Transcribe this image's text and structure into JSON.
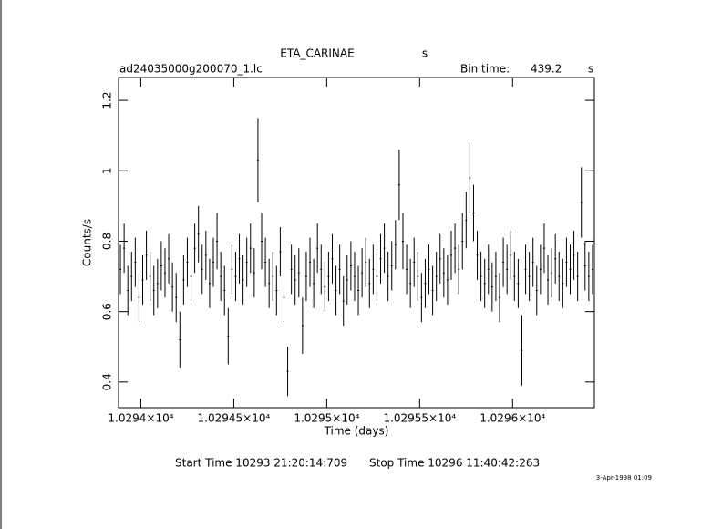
{
  "chart_data": {
    "type": "errorbar",
    "title": "ETA_CARINAE",
    "title_unit": "s",
    "file": "ad24035000g200070_1.lc",
    "bin_label": "Bin time:",
    "bin_time": "439.2",
    "bin_unit": "s",
    "xlabel": "Time (days)",
    "ylabel": "Counts/s",
    "start": "Start Time 10293 21:20:14:709",
    "stop": "Stop Time 10296 11:40:42:263",
    "date": "3-Apr-1998 01:09",
    "color": "#000000",
    "xlim": [
      10293.88,
      10296.44
    ],
    "ylim": [
      0.327,
      1.265
    ],
    "xticks": [
      {
        "value": 10294,
        "label": "1.0294×10⁴"
      },
      {
        "value": 10294.5,
        "label": "1.02945×10⁴"
      },
      {
        "value": 10295,
        "label": "1.0295×10⁴"
      },
      {
        "value": 10295.5,
        "label": "1.02955×10⁴"
      },
      {
        "value": 10296,
        "label": "1.0296×10⁴"
      }
    ],
    "yticks": [
      0.4,
      0.6,
      0.8,
      1,
      1.2
    ],
    "x": [
      10293.89,
      10293.91,
      10293.93,
      10293.95,
      10293.97,
      10293.99,
      10294.01,
      10294.03,
      10294.05,
      10294.07,
      10294.09,
      10294.11,
      10294.13,
      10294.15,
      10294.17,
      10294.19,
      10294.21,
      10294.23,
      10294.25,
      10294.27,
      10294.29,
      10294.31,
      10294.33,
      10294.35,
      10294.37,
      10294.39,
      10294.41,
      10294.43,
      10294.45,
      10294.47,
      10294.49,
      10294.51,
      10294.53,
      10294.55,
      10294.57,
      10294.59,
      10294.61,
      10294.63,
      10294.65,
      10294.67,
      10294.69,
      10294.71,
      10294.73,
      10294.75,
      10294.77,
      10294.79,
      10294.81,
      10294.83,
      10294.85,
      10294.87,
      10294.89,
      10294.91,
      10294.93,
      10294.95,
      10294.97,
      10294.99,
      10295.01,
      10295.03,
      10295.05,
      10295.07,
      10295.09,
      10295.11,
      10295.13,
      10295.15,
      10295.17,
      10295.19,
      10295.21,
      10295.23,
      10295.25,
      10295.27,
      10295.29,
      10295.31,
      10295.33,
      10295.35,
      10295.37,
      10295.39,
      10295.41,
      10295.43,
      10295.45,
      10295.47,
      10295.49,
      10295.51,
      10295.53,
      10295.55,
      10295.57,
      10295.59,
      10295.61,
      10295.63,
      10295.65,
      10295.67,
      10295.69,
      10295.71,
      10295.73,
      10295.75,
      10295.77,
      10295.79,
      10295.81,
      10295.83,
      10295.85,
      10295.87,
      10295.89,
      10295.91,
      10295.93,
      10295.95,
      10295.97,
      10295.99,
      10296.01,
      10296.03,
      10296.05,
      10296.07,
      10296.09,
      10296.11,
      10296.13,
      10296.15,
      10296.17,
      10296.19,
      10296.21,
      10296.23,
      10296.25,
      10296.27,
      10296.29,
      10296.31,
      10296.33,
      10296.35,
      10296.37,
      10296.39,
      10296.41,
      10296.43
    ],
    "values": [
      0.72,
      0.78,
      0.66,
      0.7,
      0.74,
      0.64,
      0.69,
      0.76,
      0.7,
      0.66,
      0.68,
      0.73,
      0.71,
      0.75,
      0.67,
      0.64,
      0.52,
      0.69,
      0.74,
      0.7,
      0.78,
      0.82,
      0.72,
      0.76,
      0.68,
      0.74,
      0.8,
      0.7,
      0.66,
      0.53,
      0.72,
      0.7,
      0.75,
      0.69,
      0.74,
      0.78,
      0.71,
      1.03,
      0.8,
      0.74,
      0.68,
      0.7,
      0.66,
      0.77,
      0.64,
      0.43,
      0.72,
      0.69,
      0.71,
      0.56,
      0.7,
      0.74,
      0.68,
      0.78,
      0.72,
      0.67,
      0.7,
      0.75,
      0.66,
      0.72,
      0.63,
      0.69,
      0.73,
      0.7,
      0.66,
      0.71,
      0.74,
      0.68,
      0.72,
      0.7,
      0.75,
      0.78,
      0.7,
      0.73,
      0.79,
      0.96,
      0.8,
      0.72,
      0.68,
      0.74,
      0.7,
      0.64,
      0.68,
      0.72,
      0.66,
      0.7,
      0.75,
      0.71,
      0.69,
      0.76,
      0.78,
      0.72,
      0.8,
      0.86,
      0.98,
      0.88,
      0.76,
      0.7,
      0.68,
      0.72,
      0.67,
      0.7,
      0.64,
      0.74,
      0.72,
      0.76,
      0.7,
      0.68,
      0.49,
      0.72,
      0.7,
      0.74,
      0.66,
      0.72,
      0.78,
      0.69,
      0.71,
      0.75,
      0.7,
      0.68,
      0.74,
      0.72,
      0.76,
      0.7,
      0.91,
      0.73,
      0.7,
      0.72
    ],
    "errors": [
      0.07,
      0.07,
      0.07,
      0.07,
      0.07,
      0.07,
      0.07,
      0.07,
      0.07,
      0.07,
      0.07,
      0.07,
      0.07,
      0.07,
      0.07,
      0.07,
      0.08,
      0.07,
      0.07,
      0.07,
      0.07,
      0.08,
      0.07,
      0.07,
      0.07,
      0.07,
      0.08,
      0.07,
      0.07,
      0.08,
      0.07,
      0.07,
      0.07,
      0.07,
      0.07,
      0.07,
      0.07,
      0.12,
      0.08,
      0.07,
      0.07,
      0.07,
      0.07,
      0.07,
      0.07,
      0.07,
      0.07,
      0.07,
      0.07,
      0.08,
      0.07,
      0.07,
      0.07,
      0.07,
      0.07,
      0.07,
      0.07,
      0.07,
      0.07,
      0.07,
      0.07,
      0.07,
      0.07,
      0.07,
      0.07,
      0.07,
      0.07,
      0.07,
      0.07,
      0.07,
      0.07,
      0.07,
      0.07,
      0.07,
      0.07,
      0.1,
      0.08,
      0.07,
      0.07,
      0.07,
      0.07,
      0.07,
      0.07,
      0.07,
      0.07,
      0.07,
      0.07,
      0.07,
      0.07,
      0.07,
      0.07,
      0.07,
      0.08,
      0.08,
      0.1,
      0.08,
      0.07,
      0.07,
      0.07,
      0.07,
      0.07,
      0.07,
      0.07,
      0.07,
      0.07,
      0.07,
      0.07,
      0.07,
      0.1,
      0.07,
      0.07,
      0.07,
      0.07,
      0.07,
      0.07,
      0.07,
      0.07,
      0.07,
      0.07,
      0.07,
      0.07,
      0.07,
      0.07,
      0.07,
      0.1,
      0.07,
      0.07,
      0.07
    ]
  }
}
